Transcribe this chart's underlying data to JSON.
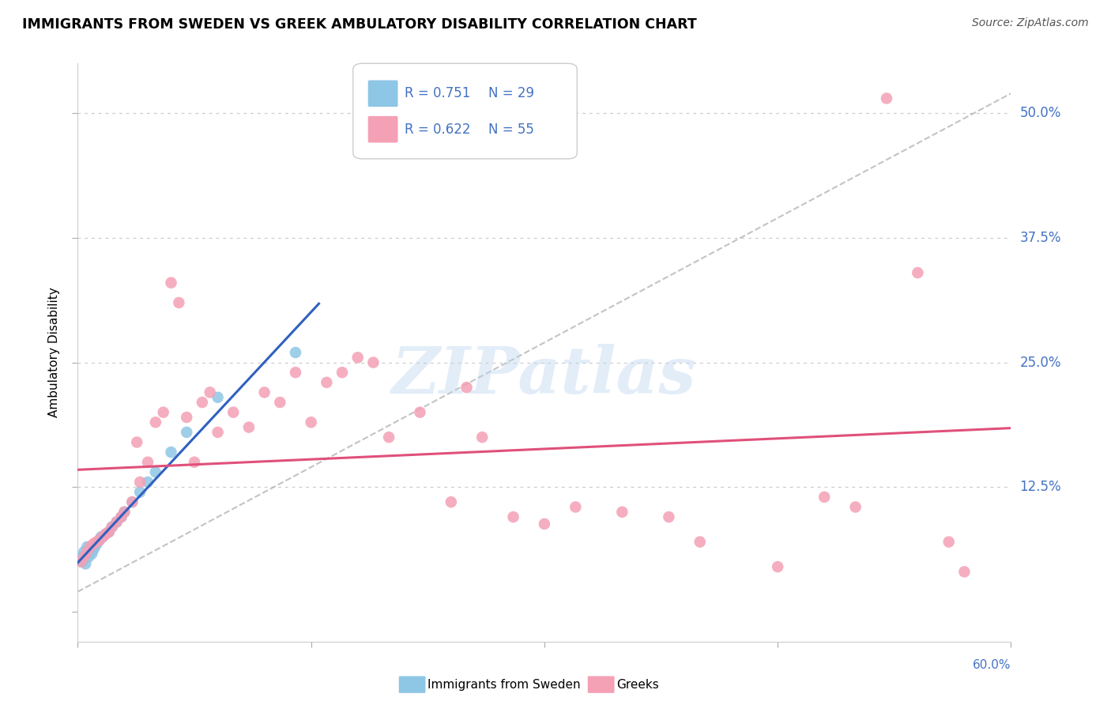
{
  "title": "IMMIGRANTS FROM SWEDEN VS GREEK AMBULATORY DISABILITY CORRELATION CHART",
  "source": "Source: ZipAtlas.com",
  "ylabel": "Ambulatory Disability",
  "legend_r1": "R = 0.751",
  "legend_n1": "N = 29",
  "legend_r2": "R = 0.622",
  "legend_n2": "N = 55",
  "legend_label1": "Immigrants from Sweden",
  "legend_label2": "Greeks",
  "color_blue": "#8ec6e6",
  "color_pink": "#f4a0b5",
  "color_blue_line": "#3060c0",
  "color_pink_line": "#e0507a",
  "color_gray_dash": "#aaaaaa",
  "color_blue_text": "#4472c4",
  "watermark": "ZIPatlas",
  "xlim": [
    0.0,
    0.6
  ],
  "ylim": [
    -0.03,
    0.55
  ],
  "ytick_vals": [
    0.0,
    0.125,
    0.25,
    0.375,
    0.5
  ],
  "ytick_labels": [
    "",
    "12.5%",
    "25.0%",
    "37.5%",
    "50.0%"
  ],
  "xtick_vals": [
    0.0,
    0.15,
    0.3,
    0.45,
    0.6
  ],
  "blue_x": [
    0.002,
    0.003,
    0.004,
    0.005,
    0.006,
    0.007,
    0.008,
    0.009,
    0.01,
    0.011,
    0.012,
    0.013,
    0.014,
    0.015,
    0.016,
    0.018,
    0.02,
    0.022,
    0.025,
    0.028,
    0.03,
    0.035,
    0.04,
    0.045,
    0.05,
    0.06,
    0.07,
    0.09,
    0.14
  ],
  "blue_y": [
    0.055,
    0.05,
    0.06,
    0.048,
    0.065,
    0.055,
    0.06,
    0.058,
    0.062,
    0.065,
    0.068,
    0.07,
    0.072,
    0.075,
    0.075,
    0.078,
    0.08,
    0.085,
    0.09,
    0.095,
    0.1,
    0.11,
    0.12,
    0.13,
    0.14,
    0.16,
    0.18,
    0.215,
    0.26
  ],
  "pink_x": [
    0.002,
    0.004,
    0.006,
    0.008,
    0.01,
    0.012,
    0.014,
    0.016,
    0.018,
    0.02,
    0.022,
    0.025,
    0.028,
    0.03,
    0.035,
    0.038,
    0.04,
    0.045,
    0.05,
    0.055,
    0.06,
    0.065,
    0.07,
    0.075,
    0.08,
    0.085,
    0.09,
    0.1,
    0.11,
    0.12,
    0.13,
    0.14,
    0.15,
    0.16,
    0.17,
    0.18,
    0.19,
    0.2,
    0.22,
    0.24,
    0.25,
    0.26,
    0.28,
    0.3,
    0.32,
    0.35,
    0.38,
    0.4,
    0.45,
    0.48,
    0.5,
    0.52,
    0.54,
    0.56,
    0.57
  ],
  "pink_y": [
    0.05,
    0.055,
    0.06,
    0.065,
    0.068,
    0.07,
    0.072,
    0.075,
    0.078,
    0.08,
    0.085,
    0.09,
    0.095,
    0.1,
    0.11,
    0.17,
    0.13,
    0.15,
    0.19,
    0.2,
    0.33,
    0.31,
    0.195,
    0.15,
    0.21,
    0.22,
    0.18,
    0.2,
    0.185,
    0.22,
    0.21,
    0.24,
    0.19,
    0.23,
    0.24,
    0.255,
    0.25,
    0.175,
    0.2,
    0.11,
    0.225,
    0.175,
    0.095,
    0.088,
    0.105,
    0.1,
    0.095,
    0.07,
    0.045,
    0.115,
    0.105,
    0.515,
    0.34,
    0.07,
    0.04
  ]
}
